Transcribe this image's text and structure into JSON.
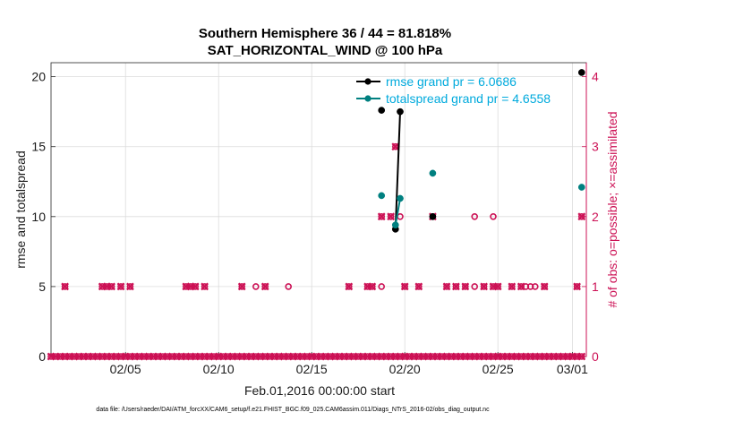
{
  "chart_data": {
    "type": "scatter",
    "title": "Southern Hemisphere 36 / 44 = 81.818%",
    "subtitle": "SAT_HORIZONTAL_WIND @ 100 hPa",
    "xlabel": "Feb.01,2016 00:00:00 start",
    "ylabel": "rmse and totalspread",
    "y2label": "# of obs: o=possible; ×=assimilated",
    "xlim": [
      1,
      29.75
    ],
    "ylim": [
      0,
      21
    ],
    "y2lim": [
      0,
      4.2
    ],
    "x_ticks": [
      5,
      10,
      15,
      20,
      25,
      29
    ],
    "x_tick_labels": [
      "02/05",
      "02/10",
      "02/15",
      "02/20",
      "02/25",
      "03/01"
    ],
    "y_ticks": [
      0,
      5,
      10,
      15,
      20
    ],
    "y2_ticks": [
      0,
      1,
      2,
      3,
      4
    ],
    "grid": true,
    "legend_position": "top-right",
    "colors": {
      "rmse": "#000000",
      "totalspread": "#008080",
      "obs": "#cc1155",
      "legend_text": "#00aadd"
    },
    "legend": [
      {
        "key": "rmse",
        "label": "rmse grand pr = 6.0686"
      },
      {
        "key": "totalspread",
        "label": "totalspread grand pr = 4.6558"
      }
    ],
    "series": [
      {
        "key": "rmse",
        "x": [
          18.75,
          19.5,
          19.75,
          21.5,
          29.5
        ],
        "y": [
          17.6,
          9.1,
          17.5,
          10.0,
          20.3
        ],
        "lines": [
          [
            19.5,
            19.75
          ]
        ]
      },
      {
        "key": "totalspread",
        "x": [
          18.75,
          19.5,
          19.75,
          21.5,
          29.5
        ],
        "y": [
          11.5,
          9.4,
          11.3,
          13.1,
          12.1
        ],
        "lines": [
          [
            19.5,
            19.75
          ]
        ]
      }
    ],
    "obs_possible": {
      "x": [
        1,
        1.25,
        1.5,
        1.75,
        2,
        2.25,
        2.5,
        2.75,
        3,
        3.25,
        3.5,
        3.75,
        4,
        4.25,
        4.5,
        4.75,
        5,
        5.25,
        5.5,
        5.75,
        6,
        6.25,
        6.5,
        6.75,
        7,
        7.25,
        7.5,
        7.75,
        8,
        8.25,
        8.5,
        8.75,
        9,
        9.25,
        9.5,
        9.75,
        10,
        10.25,
        10.5,
        10.75,
        11,
        11.25,
        11.5,
        11.75,
        12,
        12.25,
        12.5,
        12.75,
        13,
        13.25,
        13.5,
        13.75,
        14,
        14.25,
        14.5,
        14.75,
        15,
        15.25,
        15.5,
        15.75,
        16,
        16.25,
        16.5,
        16.75,
        17,
        17.25,
        17.5,
        17.75,
        18,
        18.25,
        18.5,
        18.75,
        19,
        19.25,
        19.5,
        19.75,
        20,
        20.25,
        20.5,
        20.75,
        21,
        21.25,
        21.5,
        21.75,
        22,
        22.25,
        22.5,
        22.75,
        23,
        23.25,
        23.5,
        23.75,
        24,
        24.25,
        24.5,
        24.75,
        25,
        25.25,
        25.5,
        25.75,
        26,
        26.25,
        26.5,
        26.75,
        27,
        27.25,
        27.5,
        27.75,
        28,
        28.25,
        28.5,
        28.75,
        29,
        29.25,
        29.5,
        1.75,
        3.75,
        4,
        4.25,
        4.75,
        5.25,
        8.25,
        8.5,
        8.75,
        9.25,
        11.25,
        12,
        12.5,
        13.75,
        17,
        18,
        18.25,
        18.75,
        20,
        20.75,
        22.25,
        22.75,
        23.25,
        23.75,
        24.25,
        24.75,
        25,
        25.75,
        26.25,
        26.5,
        26.75,
        27,
        27.5,
        29.25,
        18.75,
        19.25,
        19.75,
        21.5,
        23.75,
        24.75,
        29.5,
        19.5
      ],
      "y": [
        0,
        0,
        0,
        0,
        0,
        0,
        0,
        0,
        0,
        0,
        0,
        0,
        0,
        0,
        0,
        0,
        0,
        0,
        0,
        0,
        0,
        0,
        0,
        0,
        0,
        0,
        0,
        0,
        0,
        0,
        0,
        0,
        0,
        0,
        0,
        0,
        0,
        0,
        0,
        0,
        0,
        0,
        0,
        0,
        0,
        0,
        0,
        0,
        0,
        0,
        0,
        0,
        0,
        0,
        0,
        0,
        0,
        0,
        0,
        0,
        0,
        0,
        0,
        0,
        0,
        0,
        0,
        0,
        0,
        0,
        0,
        0,
        0,
        0,
        0,
        0,
        0,
        0,
        0,
        0,
        0,
        0,
        0,
        0,
        0,
        0,
        0,
        0,
        0,
        0,
        0,
        0,
        0,
        0,
        0,
        0,
        0,
        0,
        0,
        0,
        0,
        0,
        0,
        0,
        0,
        0,
        0,
        0,
        0,
        0,
        0,
        0,
        0,
        0,
        0,
        1,
        1,
        1,
        1,
        1,
        1,
        1,
        1,
        1,
        1,
        1,
        1,
        1,
        1,
        1,
        1,
        1,
        1,
        1,
        1,
        1,
        1,
        1,
        1,
        1,
        1,
        1,
        1,
        1,
        1,
        1,
        1,
        1,
        1,
        2,
        2,
        2,
        2,
        2,
        2,
        2,
        3
      ]
    },
    "obs_assimilated": {
      "x": [
        1,
        1.25,
        1.5,
        1.75,
        2,
        2.25,
        2.5,
        2.75,
        3,
        3.25,
        3.5,
        3.75,
        4,
        4.25,
        4.5,
        4.75,
        5,
        5.25,
        5.5,
        5.75,
        6,
        6.25,
        6.5,
        6.75,
        7,
        7.25,
        7.5,
        7.75,
        8,
        8.25,
        8.5,
        8.75,
        9,
        9.25,
        9.5,
        9.75,
        10,
        10.25,
        10.5,
        10.75,
        11,
        11.25,
        11.5,
        11.75,
        12,
        12.25,
        12.5,
        12.75,
        13,
        13.25,
        13.5,
        13.75,
        14,
        14.25,
        14.5,
        14.75,
        15,
        15.25,
        15.5,
        15.75,
        16,
        16.25,
        16.5,
        16.75,
        17,
        17.25,
        17.5,
        17.75,
        18,
        18.25,
        18.5,
        18.75,
        19,
        19.25,
        19.5,
        19.75,
        20,
        20.25,
        20.5,
        20.75,
        21,
        21.25,
        21.5,
        21.75,
        22,
        22.25,
        22.5,
        22.75,
        23,
        23.25,
        23.5,
        23.75,
        24,
        24.25,
        24.5,
        24.75,
        25,
        25.25,
        25.5,
        25.75,
        26,
        26.25,
        26.5,
        26.75,
        27,
        27.25,
        27.5,
        27.75,
        28,
        28.25,
        28.5,
        28.75,
        29,
        29.25,
        29.5,
        1.75,
        3.75,
        4,
        4.25,
        4.75,
        5.25,
        8.25,
        8.5,
        8.75,
        9.25,
        11.25,
        12.5,
        17,
        18,
        18.25,
        20,
        20.75,
        22.25,
        22.75,
        23.25,
        24.25,
        24.75,
        25,
        25.75,
        26.25,
        27.5,
        29.25,
        18.75,
        19.25,
        21.5,
        29.5,
        19.5
      ],
      "y": [
        0,
        0,
        0,
        0,
        0,
        0,
        0,
        0,
        0,
        0,
        0,
        0,
        0,
        0,
        0,
        0,
        0,
        0,
        0,
        0,
        0,
        0,
        0,
        0,
        0,
        0,
        0,
        0,
        0,
        0,
        0,
        0,
        0,
        0,
        0,
        0,
        0,
        0,
        0,
        0,
        0,
        0,
        0,
        0,
        0,
        0,
        0,
        0,
        0,
        0,
        0,
        0,
        0,
        0,
        0,
        0,
        0,
        0,
        0,
        0,
        0,
        0,
        0,
        0,
        0,
        0,
        0,
        0,
        0,
        0,
        0,
        0,
        0,
        0,
        0,
        0,
        0,
        0,
        0,
        0,
        0,
        0,
        0,
        0,
        0,
        0,
        0,
        0,
        0,
        0,
        0,
        0,
        0,
        0,
        0,
        0,
        0,
        0,
        0,
        0,
        0,
        0,
        0,
        0,
        0,
        0,
        0,
        0,
        0,
        0,
        0,
        0,
        0,
        0,
        0,
        1,
        1,
        1,
        1,
        1,
        1,
        1,
        1,
        1,
        1,
        1,
        1,
        1,
        1,
        1,
        1,
        1,
        1,
        1,
        1,
        1,
        1,
        1,
        1,
        1,
        1,
        1,
        2,
        2,
        2,
        2,
        3
      ]
    },
    "footnote": "data file: /Users/raeder/DAI/ATM_forcXX/CAM6_setup/f.e21.FHIST_BGC.f09_025.CAM6assim.011/Diags_NTrS_2016-02/obs_diag_output.nc"
  }
}
